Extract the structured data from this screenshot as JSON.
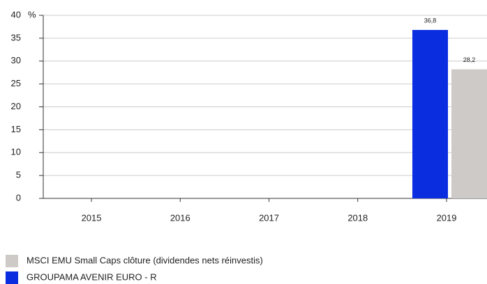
{
  "chart_data": {
    "type": "bar",
    "categories": [
      "2015",
      "2016",
      "2017",
      "2018",
      "2019"
    ],
    "y_unit": "%",
    "series": [
      {
        "name": "GROUPAMA AVENIR EURO - R",
        "color": "#0a2de0",
        "values": [
          null,
          null,
          null,
          null,
          36.8
        ],
        "value_labels": [
          null,
          null,
          null,
          null,
          "36,8"
        ]
      },
      {
        "name": "MSCI EMU Small Caps clôture (dividendes nets réinvestis)",
        "color": "#cdcac8",
        "values": [
          null,
          null,
          null,
          null,
          28.2
        ],
        "value_labels": [
          null,
          null,
          null,
          null,
          "28,2"
        ]
      }
    ],
    "ylim": [
      0,
      40
    ],
    "yticks": [
      0,
      5,
      10,
      15,
      20,
      25,
      30,
      35,
      40
    ],
    "grid": true
  }
}
